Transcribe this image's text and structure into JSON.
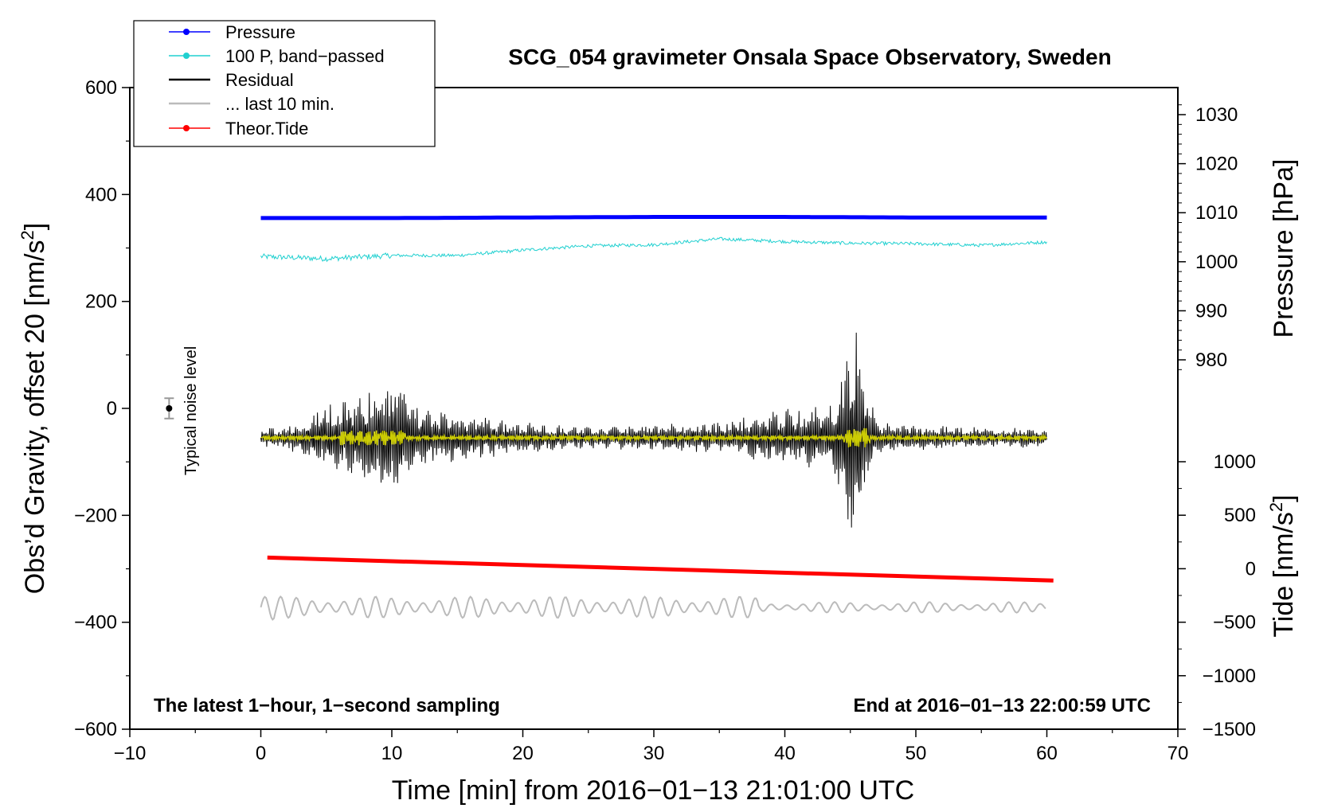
{
  "chart_data": {
    "type": "line",
    "title": "SCG_054 gravimeter Onsala Space Observatory, Sweden",
    "xlabel": "Time [min] from 2016−01−13 21:01:00 UTC",
    "xlim": [
      -10,
      70
    ],
    "x_ticks": [
      -10,
      0,
      10,
      20,
      30,
      40,
      50,
      60,
      70
    ],
    "x_tick_labels": [
      "−10",
      "0",
      "10",
      "20",
      "30",
      "40",
      "50",
      "60",
      "70"
    ],
    "y_left": {
      "label_main": "Obs’d Gravity, offset 20 [nm/s",
      "label_sup": "2",
      "label_end": "]",
      "lim": [
        -600,
        600
      ],
      "ticks": [
        600,
        400,
        200,
        0,
        -200,
        -400,
        -600
      ],
      "tick_labels": [
        "600",
        "400",
        "200",
        "0",
        "−200",
        "−400",
        "−600"
      ]
    },
    "y_right_pressure": {
      "label": "Pressure [hPa]",
      "ticks": [
        1030,
        1020,
        1010,
        1000,
        990,
        980
      ],
      "tick_labels": [
        "1030",
        "1020",
        "1010",
        "1000",
        "990",
        "980"
      ]
    },
    "y_right_tide": {
      "label_main": "Tide [nm/s",
      "label_sup": "2",
      "label_end": "]",
      "ticks": [
        1000,
        500,
        0,
        -500,
        -1000,
        -1500
      ],
      "tick_labels": [
        "1000",
        "500",
        "0",
        "−500",
        "−1000",
        "−1500"
      ]
    },
    "legend": [
      {
        "label": "Pressure",
        "color": "#0000ff",
        "marker": true
      },
      {
        "label": "100 P, band−passed",
        "color": "#20d0d0",
        "marker": true
      },
      {
        "label": "Residual",
        "color": "#000000",
        "marker": false
      },
      {
        "label": "... last 10 min.",
        "color": "#bbbbbb",
        "marker": false
      },
      {
        "label": "Theor.Tide",
        "color": "#ff0000",
        "marker": true
      }
    ],
    "series": [
      {
        "name": "Pressure",
        "color": "#0000ff",
        "x": [
          0,
          10,
          20,
          30,
          40,
          50,
          60
        ],
        "y": [
          356,
          356,
          357,
          358,
          358,
          357,
          357
        ]
      },
      {
        "name": "100 P, band-passed",
        "color": "#20d0d0",
        "x": [
          0,
          5,
          10,
          15,
          20,
          25,
          30,
          35,
          40,
          45,
          50,
          55,
          60
        ],
        "y": [
          284,
          280,
          286,
          286,
          296,
          304,
          306,
          317,
          312,
          309,
          308,
          305,
          311
        ]
      },
      {
        "name": "Residual",
        "color": "#000000",
        "baseline": -55,
        "x": [
          0,
          3,
          5,
          8,
          9,
          10,
          10.5,
          12,
          15,
          20,
          25,
          30,
          35,
          40,
          43,
          44,
          45,
          45.5,
          46,
          46.5,
          47,
          50,
          55,
          60
        ],
        "envelope": [
          18,
          30,
          65,
          85,
          110,
          120,
          115,
          60,
          45,
          30,
          20,
          25,
          30,
          55,
          60,
          80,
          200,
          230,
          160,
          80,
          30,
          25,
          20,
          18
        ]
      },
      {
        "name": "100 P, band-passed (overlay)",
        "color": "#dddd00",
        "baseline": -55
      },
      {
        "name": "Theor.Tide",
        "color": "#ff0000",
        "x": [
          0.5,
          60.5
        ],
        "y": [
          -279,
          -322
        ]
      },
      {
        "name": "... last 10 min.",
        "color": "#bbbbbb",
        "baseline": -372,
        "amplitude": 20
      }
    ],
    "noise_marker": {
      "x": -7,
      "y": 0,
      "err": 19,
      "label": "Typical noise level"
    },
    "annotations": {
      "left": "The latest 1−hour, 1−second sampling",
      "right": "End at 2016−01−13 22:00:59 UTC"
    }
  }
}
